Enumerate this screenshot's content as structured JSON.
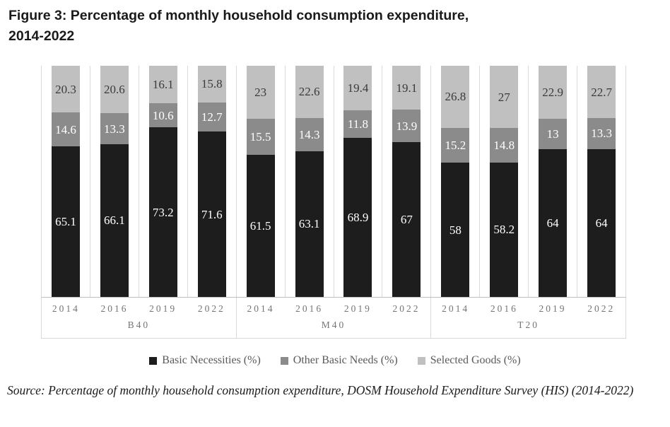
{
  "header": {
    "title_line1": "Figure 3: Percentage of monthly household consumption expenditure,",
    "title_line2": "2014-2022"
  },
  "chart_data": {
    "type": "bar",
    "stacked": true,
    "unit": "%",
    "ylim": [
      0,
      100
    ],
    "legend_position": "bottom",
    "grid": "vertical-category-separators",
    "colors": {
      "basic_necessities": "#1d1d1d",
      "other_basic_needs": "#8b8b8b",
      "selected_goods": "#c0c0c0",
      "gridline": "#d9d9d9",
      "axis_line": "#bfbfbf",
      "axis_text": "#757575",
      "legend_text": "#595959"
    },
    "group_labels": [
      "B40",
      "M40",
      "T20"
    ],
    "categories": [
      "2014",
      "2016",
      "2019",
      "2022"
    ],
    "series": [
      {
        "name": "Basic Necessities (%)",
        "color": "#1d1d1d",
        "label_color": "#ffffff",
        "values": {
          "B40": [
            65.1,
            66.1,
            73.2,
            71.6
          ],
          "M40": [
            61.5,
            63.1,
            68.9,
            67
          ],
          "T20": [
            58,
            58.2,
            64,
            64
          ]
        }
      },
      {
        "name": "Other Basic Needs (%)",
        "color": "#8b8b8b",
        "label_color": "#ffffff",
        "values": {
          "B40": [
            14.6,
            13.3,
            10.6,
            12.7
          ],
          "M40": [
            15.5,
            14.3,
            11.8,
            13.9
          ],
          "T20": [
            15.2,
            14.8,
            13,
            13.3
          ]
        }
      },
      {
        "name": "Selected Goods (%)",
        "color": "#c0c0c0",
        "label_color": "#3b3b3b",
        "values": {
          "B40": [
            20.3,
            20.6,
            16.1,
            15.8
          ],
          "M40": [
            23,
            22.6,
            19.4,
            19.1
          ],
          "T20": [
            26.8,
            27,
            22.9,
            22.7
          ]
        }
      }
    ]
  },
  "source": {
    "line1": "Source: Percentage of monthly household consumption expenditure, DOSM Household Expenditure Survey",
    "line2": "(HIS) (2014-2022)"
  }
}
